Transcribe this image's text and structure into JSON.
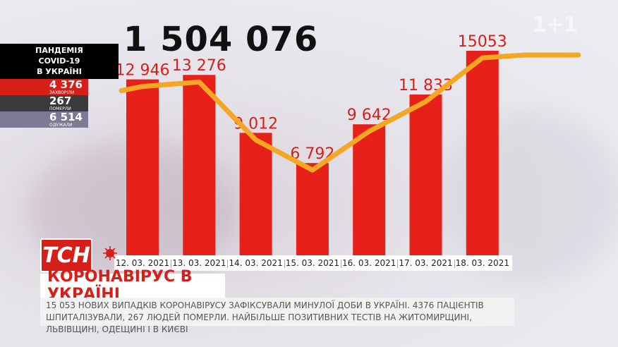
{
  "total": "1 504 076",
  "stats": {
    "header": [
      "ПАНДЕМІЯ",
      "COVID-19",
      "В УКРАЇНІ"
    ],
    "sick": {
      "value": "4 376",
      "label": "ЗАХВОРІЛИ"
    },
    "dead": {
      "value": "267",
      "label": "ПОМЕРЛИ"
    },
    "recovered": {
      "value": "6 514",
      "label": "ОДУЖАЛИ"
    }
  },
  "channel_logo": "1+1",
  "tsn_logo": "ТСН",
  "headline": "КОРОНАВІРУС В УКРАЇНІ",
  "ticker": "15 053 НОВИХ ВИПАДКІВ КОРОНАВІРУСУ ЗАФІКСУВАЛИ МИНУЛОЇ ДОБИ В УКРАЇНІ. 4376 ПАЦІЄНТІВ ШПИТАЛІЗУВАЛИ, 267 ЛЮДЕЙ ПОМЕРЛИ. НАЙБІЛЬШЕ ПОЗИТИВНИХ ТЕСТІВ НА ЖИТОМИРЩИНІ, ЛЬВІВЩИНІ, ОДЕЩИНІ І В КИЄВІ",
  "colors": {
    "bar": "#e8201a",
    "line": "#f5a623",
    "label": "#d71f1a",
    "brand_red": "#d71f1a"
  },
  "chart_data": {
    "type": "bar",
    "categories": [
      "12. 03. 2021",
      "13. 03. 2021",
      "14. 03. 2021",
      "15. 03. 2021",
      "16. 03. 2021",
      "17. 03. 2021",
      "18. 03. 2021"
    ],
    "values": [
      12946,
      13276,
      9012,
      6792,
      9642,
      11833,
      15053
    ],
    "value_labels": [
      "12 946",
      "13 276",
      "9 012",
      "6 792",
      "9 642",
      "11 833",
      "15053"
    ],
    "overlay_line": "trend line through bar values",
    "title": "",
    "xlabel": "",
    "ylabel": "",
    "grid": false,
    "legend": "none"
  }
}
